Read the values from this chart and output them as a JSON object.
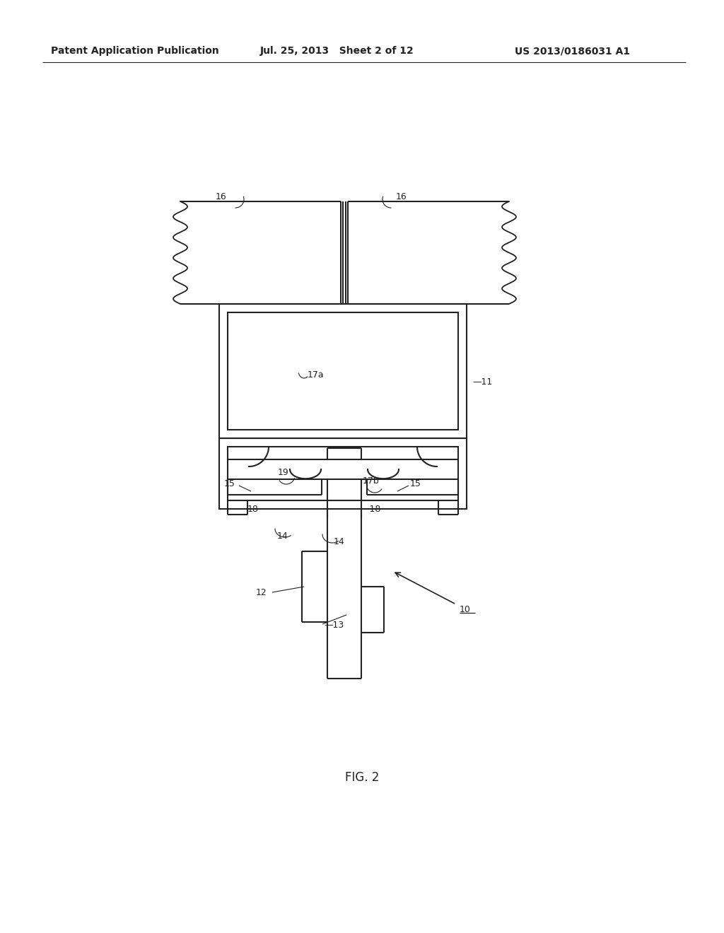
{
  "bg_color": "#ffffff",
  "line_color": "#222222",
  "header_text": "Patent Application Publication",
  "header_date": "Jul. 25, 2013   Sheet 2 of 12",
  "header_patent": "US 2013/0186031 A1",
  "fig_label": "FIG. 2"
}
